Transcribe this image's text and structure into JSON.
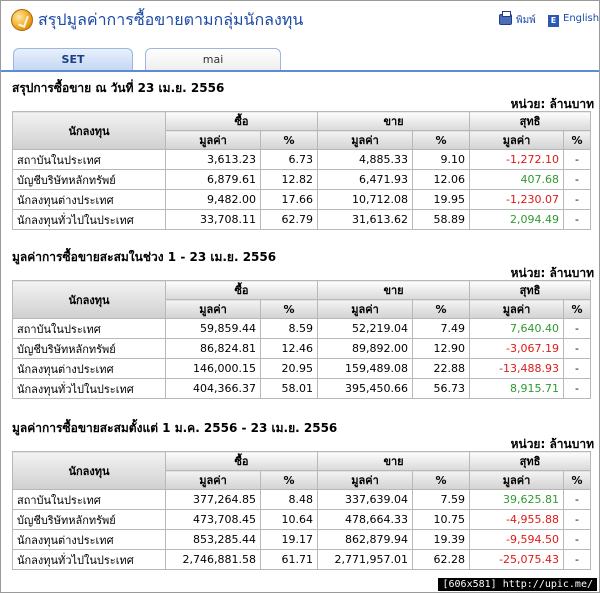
{
  "header": {
    "title": "สรุปมูลค่าการซื้อขายตามกลุ่มนักลงทุน",
    "print_label": "พิมพ์",
    "english_label": "English",
    "logo_icon": "coin-icon",
    "print_icon": "printer-icon",
    "english_icon": "english-e-icon"
  },
  "tabs": [
    {
      "label": "SET",
      "active": true
    },
    {
      "label": "mai",
      "active": false
    }
  ],
  "colors": {
    "accent": "#1c4aa8",
    "positive": "#2f9a2f",
    "negative": "#e01818"
  },
  "columns": {
    "investor": "นักลงทุน",
    "buy": "ซื้อ",
    "sell": "ขาย",
    "net": "สุทธิ",
    "value": "มูลค่า",
    "percent": "%"
  },
  "sections": [
    {
      "title": "สรุปการซื้อขาย ณ วันที่ 23 เม.ย. 2556",
      "unit": "หน่วย: ล้านบาท",
      "rows": [
        {
          "name": "สถาบันในประเทศ",
          "buy": "3,613.23",
          "buy_pct": "6.73",
          "sell": "4,885.33",
          "sell_pct": "9.10",
          "net": "-1,272.10",
          "net_sign": "neg",
          "net_pct": "-"
        },
        {
          "name": "บัญชีบริษัทหลักทรัพย์",
          "buy": "6,879.61",
          "buy_pct": "12.82",
          "sell": "6,471.93",
          "sell_pct": "12.06",
          "net": "407.68",
          "net_sign": "pos",
          "net_pct": "-"
        },
        {
          "name": "นักลงทุนต่างประเทศ",
          "buy": "9,482.00",
          "buy_pct": "17.66",
          "sell": "10,712.08",
          "sell_pct": "19.95",
          "net": "-1,230.07",
          "net_sign": "neg",
          "net_pct": "-"
        },
        {
          "name": "นักลงทุนทั่วไปในประเทศ",
          "buy": "33,708.11",
          "buy_pct": "62.79",
          "sell": "31,613.62",
          "sell_pct": "58.89",
          "net": "2,094.49",
          "net_sign": "pos",
          "net_pct": "-"
        }
      ]
    },
    {
      "title": "มูลค่าการซื้อขายสะสมในช่วง 1 - 23 เม.ย. 2556",
      "unit": "หน่วย: ล้านบาท",
      "rows": [
        {
          "name": "สถาบันในประเทศ",
          "buy": "59,859.44",
          "buy_pct": "8.59",
          "sell": "52,219.04",
          "sell_pct": "7.49",
          "net": "7,640.40",
          "net_sign": "pos",
          "net_pct": "-"
        },
        {
          "name": "บัญชีบริษัทหลักทรัพย์",
          "buy": "86,824.81",
          "buy_pct": "12.46",
          "sell": "89,892.00",
          "sell_pct": "12.90",
          "net": "-3,067.19",
          "net_sign": "neg",
          "net_pct": "-"
        },
        {
          "name": "นักลงทุนต่างประเทศ",
          "buy": "146,000.15",
          "buy_pct": "20.95",
          "sell": "159,489.08",
          "sell_pct": "22.88",
          "net": "-13,488.93",
          "net_sign": "neg",
          "net_pct": "-"
        },
        {
          "name": "นักลงทุนทั่วไปในประเทศ",
          "buy": "404,366.37",
          "buy_pct": "58.01",
          "sell": "395,450.66",
          "sell_pct": "56.73",
          "net": "8,915.71",
          "net_sign": "pos",
          "net_pct": "-"
        }
      ]
    },
    {
      "title": "มูลค่าการซื้อขายสะสมตั้งแต่ 1 ม.ค. 2556 - 23 เม.ย. 2556",
      "unit": "หน่วย: ล้านบาท",
      "rows": [
        {
          "name": "สถาบันในประเทศ",
          "buy": "377,264.85",
          "buy_pct": "8.48",
          "sell": "337,639.04",
          "sell_pct": "7.59",
          "net": "39,625.81",
          "net_sign": "pos",
          "net_pct": "-"
        },
        {
          "name": "บัญชีบริษัทหลักทรัพย์",
          "buy": "473,708.45",
          "buy_pct": "10.64",
          "sell": "478,664.33",
          "sell_pct": "10.75",
          "net": "-4,955.88",
          "net_sign": "neg",
          "net_pct": "-"
        },
        {
          "name": "นักลงทุนต่างประเทศ",
          "buy": "853,285.44",
          "buy_pct": "19.17",
          "sell": "862,879.94",
          "sell_pct": "19.39",
          "net": "-9,594.50",
          "net_sign": "neg",
          "net_pct": "-"
        },
        {
          "name": "นักลงทุนทั่วไปในประเทศ",
          "buy": "2,746,881.58",
          "buy_pct": "61.71",
          "sell": "2,771,957.01",
          "sell_pct": "62.28",
          "net": "-25,075.43",
          "net_sign": "neg",
          "net_pct": "-"
        }
      ]
    }
  ],
  "watermark": "[606x581] http://upic.me/"
}
